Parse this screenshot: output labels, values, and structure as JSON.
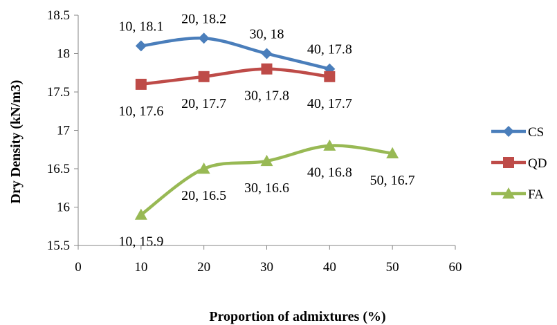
{
  "chart_data": {
    "type": "line",
    "title": "",
    "xlabel": "Proportion of admixtures (%)",
    "ylabel": "Dry Density (kN/m3)",
    "xlim": [
      0,
      60
    ],
    "ylim": [
      15.5,
      18.5
    ],
    "x_ticks": [
      0,
      10,
      20,
      30,
      40,
      50,
      60
    ],
    "y_ticks": [
      15.5,
      16,
      16.5,
      17,
      17.5,
      18,
      18.5
    ],
    "x_tick_labels": [
      "0",
      "10",
      "20",
      "30",
      "40",
      "50",
      "60"
    ],
    "y_tick_labels": [
      "15.5",
      "16",
      "16.5",
      "17",
      "17.5",
      "18",
      "18.5"
    ],
    "grid": false,
    "legend_position": "right",
    "series": [
      {
        "name": "CS",
        "color": "#4a7ebb",
        "marker": "diamond",
        "x": [
          10,
          20,
          30,
          40
        ],
        "y": [
          18.1,
          18.2,
          18,
          17.8
        ],
        "labels": [
          "10, 18.1",
          "20, 18.2",
          "30, 18",
          "40, 17.8"
        ],
        "label_position": "above"
      },
      {
        "name": "QD",
        "color": "#be4b48",
        "marker": "square",
        "x": [
          10,
          20,
          30,
          40
        ],
        "y": [
          17.6,
          17.7,
          17.8,
          17.7
        ],
        "labels": [
          "10, 17.6",
          "20, 17.7",
          "30, 17.8",
          "40, 17.7"
        ],
        "label_position": "below"
      },
      {
        "name": "FA",
        "color": "#98b954",
        "marker": "triangle",
        "x": [
          10,
          20,
          30,
          40,
          50
        ],
        "y": [
          15.9,
          16.5,
          16.6,
          16.8,
          16.7
        ],
        "labels": [
          "10, 15.9",
          "20, 16.5",
          "30, 16.6",
          "40, 16.8",
          "50, 16.7"
        ],
        "label_position": "below"
      }
    ]
  }
}
